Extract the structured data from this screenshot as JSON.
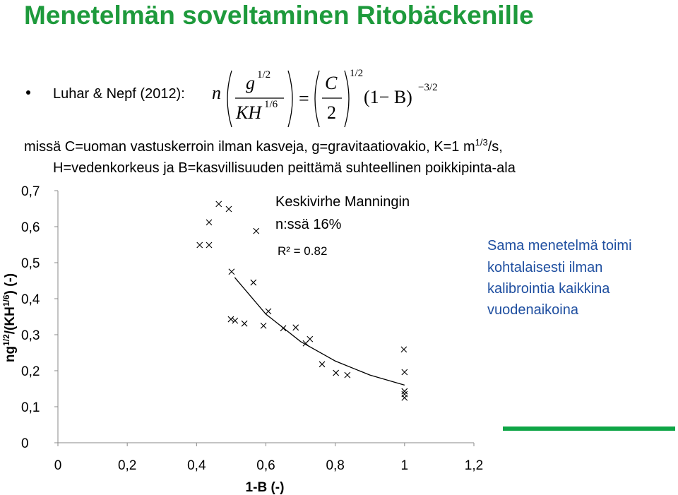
{
  "title": "Menetelmän soveltaminen Ritobäckenille",
  "bullet": {
    "label": "Luhar & Nepf (2012):",
    "formula": {
      "n": "n",
      "g": "g",
      "g_exp": "1/2",
      "kh": "KH",
      "kh_exp": "1/6",
      "eq": "=",
      "c": "C",
      "two": "2",
      "c_exp": "1/2",
      "b": "(1− B)",
      "b_exp": "−3/2"
    }
  },
  "definitions": {
    "line1": [
      "missä C=uoman vastuskerroin ilman kasveja, g=gravitaatiovakio, K=1 m",
      "1/3",
      "/s,"
    ],
    "line2": "H=vedenkorkeus ja B=kasvillisuuden peittämä suhteellinen poikkipinta-ala"
  },
  "side_note": [
    "Sama menetelmä toimi",
    "kohtalaisesti ilman",
    "kalibrointia kaikkina",
    "vuodenaikoina"
  ],
  "chart_data": {
    "type": "scatter",
    "x_label": "1-B (-)",
    "y_label": [
      "ng",
      "1/2",
      "/(KH",
      "1/6",
      ") (-)"
    ],
    "annotations": [
      "Keskivirhe Manningin",
      "n:ssä 16%",
      "R² = 0.82"
    ],
    "color": "#000000",
    "x": [
      0.464,
      0.493,
      0.436,
      0.572,
      0.409,
      0.436,
      0.501,
      0.564,
      0.607,
      0.499,
      0.511,
      0.538,
      0.593,
      0.65,
      0.686,
      0.727,
      0.715,
      0.762,
      0.802,
      0.835,
      0.998,
      1.0,
      1.0,
      1.0,
      1.0
    ],
    "values": [
      0.663,
      0.649,
      0.612,
      0.588,
      0.549,
      0.549,
      0.475,
      0.445,
      0.365,
      0.343,
      0.339,
      0.331,
      0.325,
      0.318,
      0.32,
      0.288,
      0.276,
      0.218,
      0.194,
      0.188,
      0.259,
      0.196,
      0.143,
      0.135,
      0.125
    ],
    "trendline": {
      "x": [
        0.51,
        0.6,
        0.7,
        0.8,
        0.9,
        1.0
      ],
      "values": [
        0.459,
        0.357,
        0.281,
        0.227,
        0.188,
        0.16
      ]
    },
    "xlim": [
      0,
      1.2
    ],
    "ylim": [
      0,
      0.7
    ],
    "xticks": [
      0,
      {
        "value": 0.2,
        "label": "0,2"
      },
      {
        "value": 0.4,
        "label": "0,4"
      },
      {
        "value": 0.6,
        "label": "0,6"
      },
      {
        "value": 0.8,
        "label": "0,8"
      },
      1,
      {
        "value": 1.2,
        "label": "1,2"
      }
    ],
    "yticks": [
      0,
      {
        "value": 0.1,
        "label": "0,1"
      },
      {
        "value": 0.2,
        "label": "0,2"
      },
      {
        "value": 0.3,
        "label": "0,3"
      },
      {
        "value": 0.4,
        "label": "0,4"
      },
      {
        "value": 0.5,
        "label": "0,5"
      },
      {
        "value": 0.6,
        "label": "0,6"
      },
      {
        "value": 0.7,
        "label": "0,7"
      }
    ],
    "grid": false
  }
}
